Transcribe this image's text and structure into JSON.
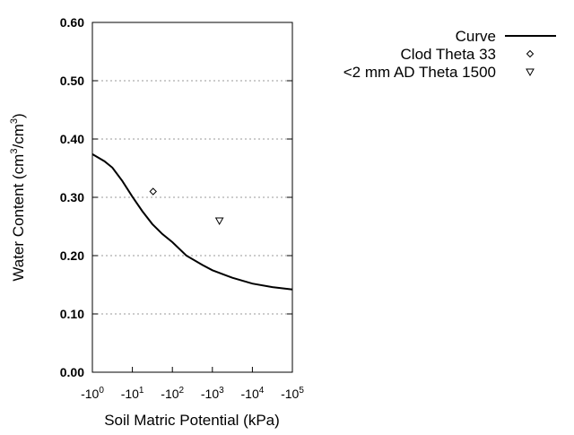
{
  "chart_data": {
    "type": "line",
    "xlabel": "Soil Matric Potential (kPa)",
    "ylabel": {
      "prefix": "Water Content (cm",
      "sup1": "3",
      "mid": "/cm",
      "sup2": "3",
      "suffix": ")"
    },
    "x_scale": "log",
    "xlim": [
      -1,
      -100000
    ],
    "ylim": [
      0.0,
      0.6
    ],
    "grid": {
      "y": true,
      "x": false,
      "style": "dotted"
    },
    "legend_placement": "top-right outside",
    "x_ticks": [
      {
        "value": -1,
        "base": "-10",
        "exp": "0"
      },
      {
        "value": -10,
        "base": "-10",
        "exp": "1"
      },
      {
        "value": -100,
        "base": "-10",
        "exp": "2"
      },
      {
        "value": -1000,
        "base": "-10",
        "exp": "3"
      },
      {
        "value": -10000,
        "base": "-10",
        "exp": "4"
      },
      {
        "value": -100000,
        "base": "-10",
        "exp": "5"
      }
    ],
    "y_ticks": [
      {
        "value": 0.0,
        "label": "0.00"
      },
      {
        "value": 0.1,
        "label": "0.10"
      },
      {
        "value": 0.2,
        "label": "0.20"
      },
      {
        "value": 0.3,
        "label": "0.30"
      },
      {
        "value": 0.4,
        "label": "0.40"
      },
      {
        "value": 0.5,
        "label": "0.50"
      },
      {
        "value": 0.6,
        "label": "0.60"
      }
    ],
    "series": [
      {
        "name": "Curve",
        "kind": "line",
        "color": "#000000",
        "points": [
          [
            -1,
            0.374
          ],
          [
            -2,
            0.362
          ],
          [
            -3.16,
            0.351
          ],
          [
            -5.6,
            0.328
          ],
          [
            -10,
            0.301
          ],
          [
            -17.8,
            0.276
          ],
          [
            -31.6,
            0.254
          ],
          [
            -56,
            0.237
          ],
          [
            -100,
            0.223
          ],
          [
            -224,
            0.2
          ],
          [
            -562,
            0.184
          ],
          [
            -1000,
            0.175
          ],
          [
            -3160,
            0.162
          ],
          [
            -10000,
            0.152
          ],
          [
            -31600,
            0.146
          ],
          [
            -100000,
            0.142
          ]
        ]
      },
      {
        "name": "Clod Theta 33",
        "kind": "scatter",
        "marker": "diamond",
        "points": [
          [
            -33,
            0.31
          ]
        ]
      },
      {
        "name": "<2 mm AD Theta 1500",
        "kind": "scatter",
        "marker": "triangle-down",
        "points": [
          [
            -1500,
            0.26
          ]
        ]
      }
    ]
  }
}
